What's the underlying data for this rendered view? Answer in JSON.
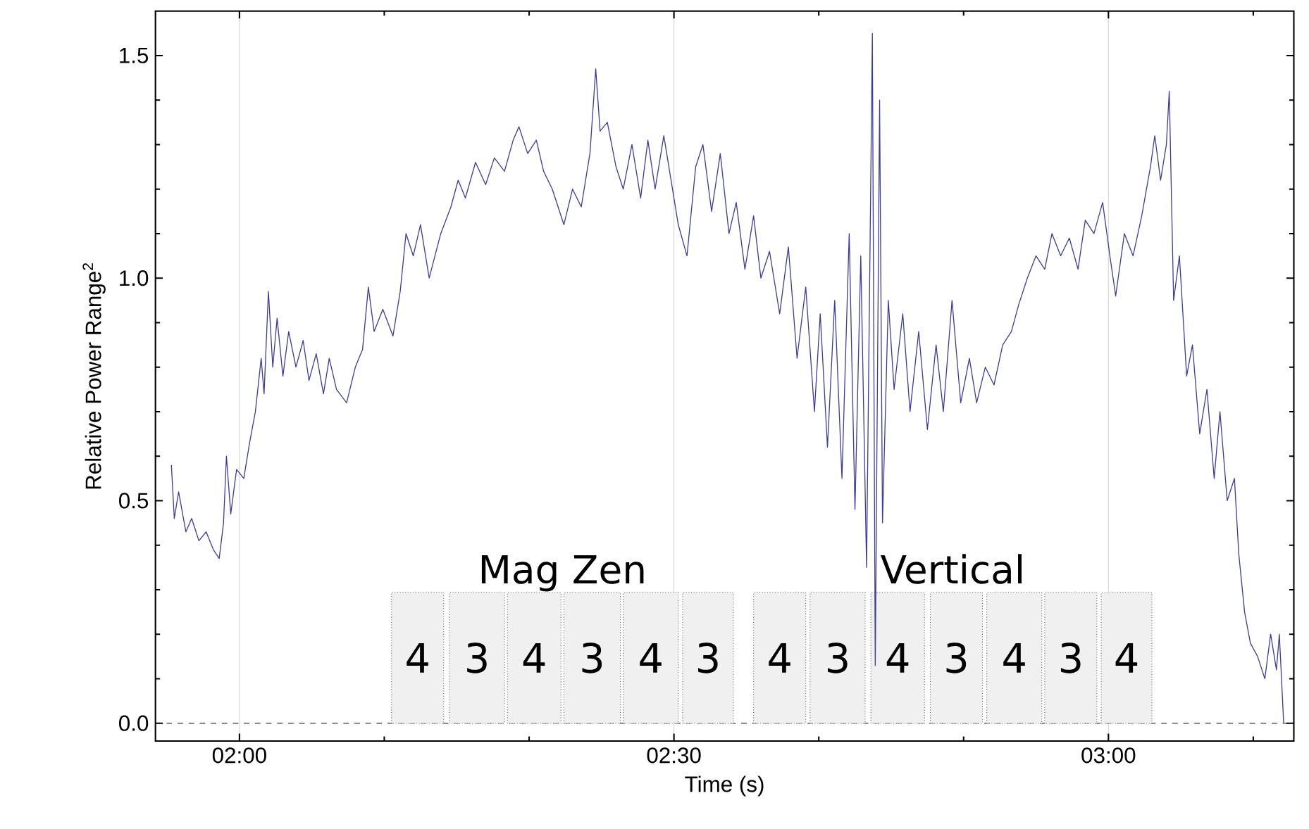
{
  "chart_data": {
    "type": "line",
    "xlabel": "Time (s)",
    "ylabel": "Relative Power Range$^{2}$",
    "x": [
      115.3,
      115.5,
      115.8,
      116.3,
      116.7,
      117.2,
      117.7,
      118.2,
      118.6,
      118.9,
      119.1,
      119.4,
      119.8,
      120.3,
      120.7,
      121.1,
      121.5,
      121.7,
      122.0,
      122.3,
      122.6,
      123.0,
      123.4,
      123.9,
      124.4,
      124.8,
      125.3,
      125.8,
      126.2,
      126.7,
      127.4,
      128.0,
      128.5,
      128.9,
      129.3,
      129.9,
      130.6,
      131.1,
      131.5,
      132.0,
      132.5,
      133.1,
      133.9,
      134.6,
      135.1,
      135.6,
      136.3,
      137.0,
      137.6,
      138.3,
      138.9,
      139.3,
      139.9,
      140.5,
      141.0,
      141.6,
      142.4,
      143.0,
      143.6,
      144.2,
      144.6,
      144.9,
      145.4,
      146.0,
      146.5,
      147.1,
      147.7,
      148.2,
      148.7,
      149.3,
      149.8,
      150.3,
      150.9,
      151.5,
      152.0,
      152.6,
      153.2,
      153.8,
      154.3,
      154.9,
      155.5,
      156.0,
      156.6,
      157.3,
      157.9,
      158.5,
      159.1,
      159.7,
      160.1,
      160.6,
      161.1,
      161.6,
      162.1,
      162.5,
      162.9,
      163.3,
      163.7,
      163.9,
      164.2,
      164.4,
      164.8,
      165.2,
      165.8,
      166.3,
      166.9,
      167.5,
      168.1,
      168.6,
      169.2,
      169.8,
      170.4,
      170.9,
      171.5,
      172.1,
      172.7,
      173.3,
      173.8,
      174.4,
      175.0,
      175.6,
      176.1,
      176.7,
      177.3,
      177.9,
      178.4,
      179.0,
      179.6,
      180.1,
      180.5,
      181.1,
      181.7,
      182.3,
      182.9,
      183.2,
      183.6,
      184.0,
      184.2,
      184.5,
      184.9,
      185.4,
      185.8,
      186.3,
      186.8,
      187.3,
      187.7,
      188.2,
      188.7,
      189.0,
      189.4,
      189.8,
      190.3,
      190.8,
      191.2,
      191.6,
      191.8,
      192.1
    ],
    "series": [
      {
        "color": "#3c3ca0",
        "values": [
          0.58,
          0.46,
          0.52,
          0.43,
          0.46,
          0.41,
          0.43,
          0.39,
          0.37,
          0.45,
          0.6,
          0.47,
          0.57,
          0.55,
          0.63,
          0.7,
          0.82,
          0.74,
          0.97,
          0.8,
          0.91,
          0.78,
          0.88,
          0.8,
          0.86,
          0.77,
          0.83,
          0.74,
          0.82,
          0.75,
          0.72,
          0.8,
          0.84,
          0.98,
          0.88,
          0.93,
          0.87,
          0.97,
          1.1,
          1.05,
          1.12,
          1.0,
          1.1,
          1.16,
          1.22,
          1.18,
          1.26,
          1.21,
          1.27,
          1.24,
          1.31,
          1.34,
          1.28,
          1.31,
          1.24,
          1.2,
          1.12,
          1.2,
          1.16,
          1.28,
          1.47,
          1.33,
          1.35,
          1.25,
          1.2,
          1.3,
          1.18,
          1.31,
          1.2,
          1.32,
          1.22,
          1.12,
          1.05,
          1.25,
          1.3,
          1.15,
          1.28,
          1.1,
          1.17,
          1.02,
          1.14,
          1.0,
          1.06,
          0.92,
          1.07,
          0.82,
          0.98,
          0.7,
          0.92,
          0.62,
          0.95,
          0.55,
          1.1,
          0.48,
          1.05,
          0.35,
          1.55,
          0.13,
          1.4,
          0.45,
          0.95,
          0.75,
          0.92,
          0.7,
          0.88,
          0.66,
          0.85,
          0.7,
          0.95,
          0.72,
          0.82,
          0.72,
          0.8,
          0.76,
          0.85,
          0.88,
          0.94,
          1.0,
          1.05,
          1.02,
          1.1,
          1.05,
          1.09,
          1.02,
          1.13,
          1.1,
          1.17,
          1.05,
          0.96,
          1.1,
          1.05,
          1.14,
          1.25,
          1.32,
          1.22,
          1.3,
          1.42,
          0.95,
          1.05,
          0.78,
          0.85,
          0.65,
          0.75,
          0.55,
          0.7,
          0.5,
          0.55,
          0.38,
          0.25,
          0.18,
          0.15,
          0.1,
          0.2,
          0.12,
          0.2,
          0.0
        ]
      }
    ],
    "xlim": [
      114.2,
      192.8
    ],
    "xticks": [
      {
        "value": 120,
        "label": "02:00"
      },
      {
        "value": 130,
        "label": null
      },
      {
        "value": 140,
        "label": null
      },
      {
        "value": 150,
        "label": "02:30"
      },
      {
        "value": 160,
        "label": null
      },
      {
        "value": 170,
        "label": null
      },
      {
        "value": 180,
        "label": "03:00"
      },
      {
        "value": 190,
        "label": null
      }
    ],
    "ylim": [
      -0.04,
      1.6
    ],
    "yticks": [
      {
        "value": 0,
        "label": "0.0"
      },
      {
        "value": 0.1,
        "label": null
      },
      {
        "value": 0.2,
        "label": null
      },
      {
        "value": 0.3,
        "label": null
      },
      {
        "value": 0.4,
        "label": null
      },
      {
        "value": 0.5,
        "label": "0.5"
      },
      {
        "value": 0.6,
        "label": null
      },
      {
        "value": 0.7,
        "label": null
      },
      {
        "value": 0.8,
        "label": null
      },
      {
        "value": 0.9,
        "label": null
      },
      {
        "value": 1.0,
        "label": "1.0"
      },
      {
        "value": 1.1,
        "label": null
      },
      {
        "value": 1.2,
        "label": null
      },
      {
        "value": 1.3,
        "label": null
      },
      {
        "value": 1.4,
        "label": null
      },
      {
        "value": 1.5,
        "label": "1.5"
      }
    ],
    "grid": "x",
    "ref_lines": [
      {
        "axis": "y",
        "value": 0,
        "color": "#000000",
        "line_style": "dashed"
      }
    ],
    "bands": [
      {
        "axis": "x",
        "from": 130.5,
        "to": 134.1,
        "label": "4"
      },
      {
        "axis": "x",
        "from": 134.5,
        "to": 138.3,
        "label": "3"
      },
      {
        "axis": "x",
        "from": 138.5,
        "to": 142.2,
        "label": "4"
      },
      {
        "axis": "x",
        "from": 142.4,
        "to": 146.3,
        "label": "3"
      },
      {
        "axis": "x",
        "from": 146.5,
        "to": 150.3,
        "label": "4"
      },
      {
        "axis": "x",
        "from": 150.6,
        "to": 154.1,
        "label": "3"
      },
      {
        "axis": "x",
        "from": 155.5,
        "to": 159.1,
        "label": "4"
      },
      {
        "axis": "x",
        "from": 159.4,
        "to": 163.2,
        "label": "3"
      },
      {
        "axis": "x",
        "from": 163.6,
        "to": 167.3,
        "label": "4"
      },
      {
        "axis": "x",
        "from": 167.7,
        "to": 171.3,
        "label": "3"
      },
      {
        "axis": "x",
        "from": 171.6,
        "to": 175.4,
        "label": "4"
      },
      {
        "axis": "x",
        "from": 175.6,
        "to": 179.2,
        "label": "3"
      },
      {
        "axis": "x",
        "from": 179.5,
        "to": 183.0,
        "label": "4"
      }
    ],
    "annotations": [
      "Mag Zen",
      "Vertical"
    ]
  }
}
